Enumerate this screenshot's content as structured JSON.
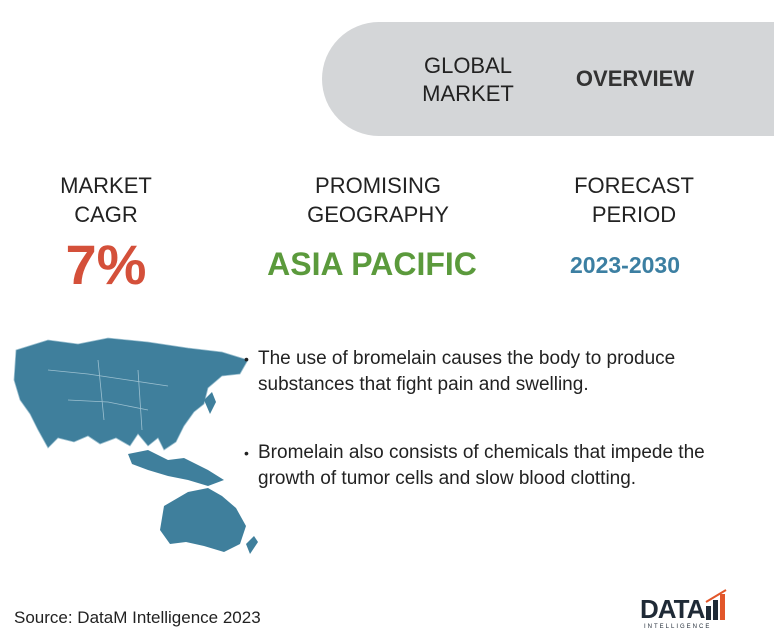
{
  "header": {
    "title_lines": [
      "GLOBAL",
      "MARKET"
    ],
    "overview": "OVERVIEW"
  },
  "stats": [
    {
      "label_lines": [
        "MARKET",
        "CAGR"
      ],
      "value": "7%"
    },
    {
      "label_lines": [
        "PROMISING",
        "GEOGRAPHY"
      ],
      "value": "ASIA PACIFIC"
    },
    {
      "label_lines": [
        "FORECAST",
        "PERIOD"
      ],
      "value": "2023-2030"
    }
  ],
  "bullets": [
    "The use of bromelain causes the body to produce substances that fight pain and swelling.",
    "Bromelain also consists of chemicals that impede the growth of tumor cells and slow blood clotting."
  ],
  "source": "Source: DataM Intelligence 2023",
  "logo": {
    "name": "DATA",
    "tagline": "INTELLIGENCE"
  }
}
